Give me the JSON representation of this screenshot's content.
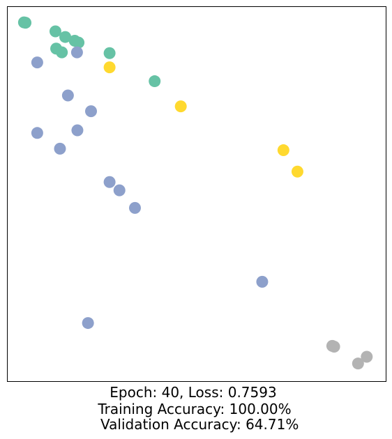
{
  "chart_data": {
    "type": "scatter",
    "title": "",
    "xlabel": "",
    "ylabel": "",
    "grid": false,
    "axis_ticks": false,
    "xlim": [
      0,
      100
    ],
    "ylim": [
      0,
      100
    ],
    "classes": [
      {
        "color": "#66c2a5"
      },
      {
        "color": "#8da0cb"
      },
      {
        "color": "#ffd92f"
      },
      {
        "color": "#b3b3b3"
      }
    ],
    "points": [
      {
        "x": 4.4,
        "y": 95.8,
        "class": 0
      },
      {
        "x": 4.8,
        "y": 95.7,
        "class": 0
      },
      {
        "x": 12.7,
        "y": 93.4,
        "class": 0
      },
      {
        "x": 15.3,
        "y": 91.9,
        "class": 0
      },
      {
        "x": 17.8,
        "y": 90.9,
        "class": 0
      },
      {
        "x": 18.8,
        "y": 90.4,
        "class": 0
      },
      {
        "x": 12.9,
        "y": 88.8,
        "class": 0
      },
      {
        "x": 14.4,
        "y": 87.8,
        "class": 0
      },
      {
        "x": 27.0,
        "y": 87.6,
        "class": 0
      },
      {
        "x": 38.9,
        "y": 80.1,
        "class": 0
      },
      {
        "x": 18.4,
        "y": 87.8,
        "class": 1
      },
      {
        "x": 7.9,
        "y": 85.1,
        "class": 1
      },
      {
        "x": 16.0,
        "y": 76.3,
        "class": 1
      },
      {
        "x": 22.1,
        "y": 72.1,
        "class": 1
      },
      {
        "x": 18.5,
        "y": 67.0,
        "class": 1
      },
      {
        "x": 7.9,
        "y": 66.3,
        "class": 1
      },
      {
        "x": 13.9,
        "y": 62.1,
        "class": 1
      },
      {
        "x": 27.0,
        "y": 53.2,
        "class": 1
      },
      {
        "x": 29.6,
        "y": 51.0,
        "class": 1
      },
      {
        "x": 33.7,
        "y": 46.3,
        "class": 1
      },
      {
        "x": 67.3,
        "y": 26.6,
        "class": 1
      },
      {
        "x": 21.3,
        "y": 15.6,
        "class": 1
      },
      {
        "x": 27.0,
        "y": 83.8,
        "class": 2
      },
      {
        "x": 45.8,
        "y": 73.4,
        "class": 2
      },
      {
        "x": 72.9,
        "y": 61.7,
        "class": 2
      },
      {
        "x": 76.6,
        "y": 56.0,
        "class": 2
      },
      {
        "x": 85.8,
        "y": 9.5,
        "class": 3
      },
      {
        "x": 86.3,
        "y": 9.3,
        "class": 3
      },
      {
        "x": 94.9,
        "y": 6.6,
        "class": 3
      },
      {
        "x": 92.6,
        "y": 4.8,
        "class": 3
      }
    ]
  },
  "caption": {
    "line1": "Epoch: 40, Loss: 0.7593",
    "line2": "Training Accuracy: 100.00%",
    "line3": " Validation Accuracy: 64.71%"
  }
}
